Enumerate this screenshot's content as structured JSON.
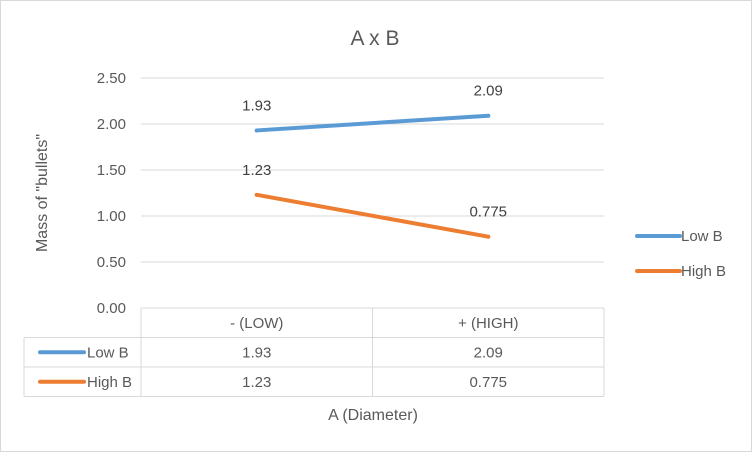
{
  "chart_data": {
    "type": "line",
    "title": "A x B",
    "xlabel": "A (Diameter)",
    "ylabel": "Mass of \"bullets\"",
    "categories": [
      "- (LOW)",
      "+ (HIGH)"
    ],
    "series": [
      {
        "name": "Low B",
        "values": [
          1.93,
          2.09
        ],
        "labels": [
          "1.93",
          "2.09"
        ],
        "color": "#5B9BD5"
      },
      {
        "name": "High B",
        "values": [
          1.23,
          0.775
        ],
        "labels": [
          "1.23",
          "0.775"
        ],
        "color": "#ED7D31"
      }
    ],
    "ylim": [
      0,
      2.5
    ],
    "yticks": [
      "0.00",
      "0.50",
      "1.00",
      "1.50",
      "2.00",
      "2.50"
    ],
    "grid": true,
    "legend": "right",
    "data_table": {
      "rows": [
        {
          "series": "Low B",
          "cells": [
            "1.93",
            "2.09"
          ]
        },
        {
          "series": "High B",
          "cells": [
            "1.23",
            "0.775"
          ]
        }
      ]
    }
  }
}
